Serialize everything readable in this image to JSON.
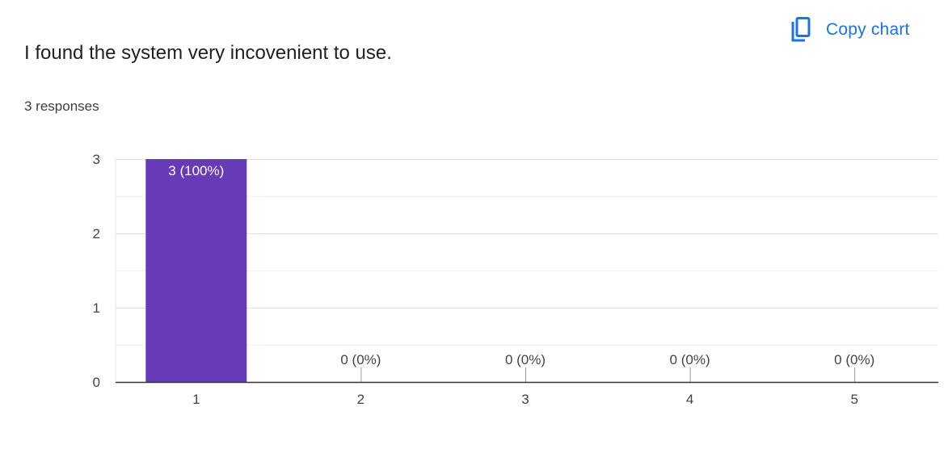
{
  "header": {
    "title": "I found the system very incovenient to use.",
    "responses": "3 responses"
  },
  "toolbar": {
    "copy_label": "Copy chart",
    "copy_icon": "copy-icon"
  },
  "colors": {
    "bar": "#673ab7",
    "accent": "#1a73e8",
    "grid": "#e6e6e6",
    "axis": "#333333",
    "text": "#444444"
  },
  "chart_data": {
    "type": "bar",
    "categories": [
      "1",
      "2",
      "3",
      "4",
      "5"
    ],
    "values": [
      3,
      0,
      0,
      0,
      0
    ],
    "data_labels": [
      "3 (100%)",
      "0 (0%)",
      "0 (0%)",
      "0 (0%)",
      "0 (0%)"
    ],
    "yticks": [
      0,
      1,
      2,
      3
    ],
    "ylim": [
      0,
      3
    ],
    "grid": true,
    "legend": "none",
    "title": "",
    "xlabel": "",
    "ylabel": ""
  }
}
